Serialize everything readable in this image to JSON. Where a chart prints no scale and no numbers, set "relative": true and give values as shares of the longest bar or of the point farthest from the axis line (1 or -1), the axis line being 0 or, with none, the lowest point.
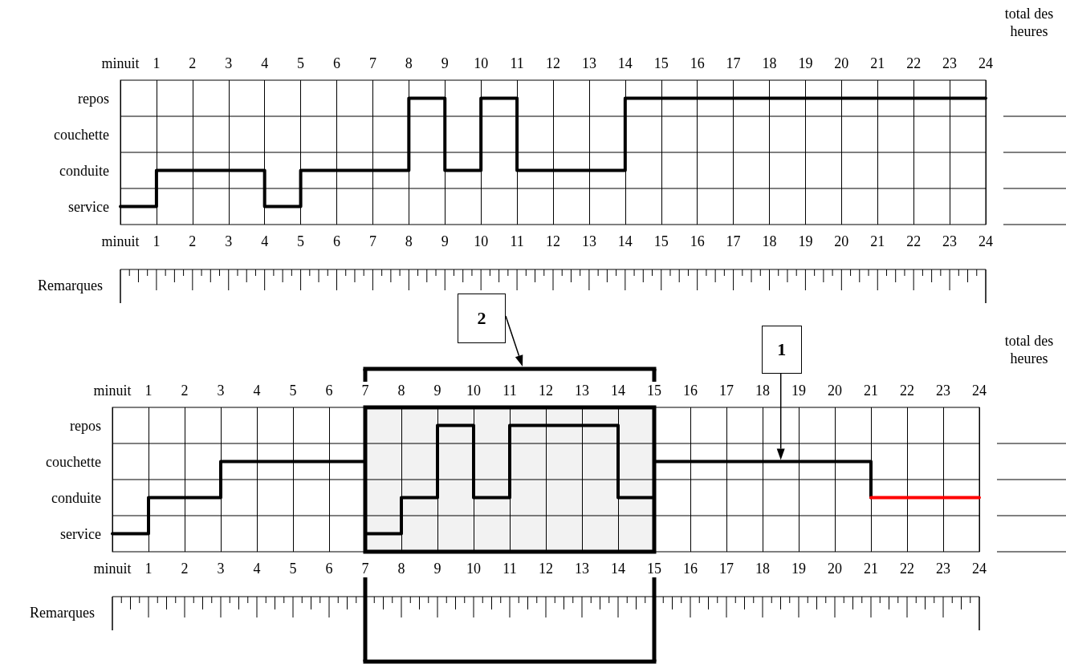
{
  "chart_data": [
    {
      "type": "step",
      "marker": "none",
      "grid": "x",
      "relative": true,
      "series": [
        {
          "color": "#000000",
          "x": [
            0,
            1,
            4,
            5,
            8,
            9,
            10,
            11,
            14,
            24
          ],
          "values": [
            0.143,
            0.429,
            0.143,
            0.429,
            1,
            0.429,
            1,
            0.429,
            1,
            1
          ]
        }
      ],
      "xlim": [
        0,
        24
      ],
      "xticks": [
        {
          "value": 0,
          "label": "minuit"
        },
        1,
        2,
        3,
        4,
        5,
        6,
        7,
        8,
        9,
        10,
        11,
        12,
        13,
        14,
        15,
        16,
        17,
        18,
        19,
        20,
        21,
        22,
        23,
        24
      ],
      "x2lim": [
        0,
        24
      ],
      "x2ticks": [
        {
          "value": 0,
          "label": "minuit"
        },
        1,
        2,
        3,
        4,
        5,
        6,
        7,
        8,
        9,
        10,
        11,
        12,
        13,
        14,
        15,
        16,
        17,
        18,
        19,
        20,
        21,
        22,
        23,
        24
      ],
      "annotations": [
        "total des heures",
        "Remarques",
        "repos",
        "couchette",
        "conduite",
        "service"
      ]
    },
    {
      "type": "step",
      "marker": "none",
      "grid": "x",
      "relative": true,
      "series": [
        {
          "color": "#000000",
          "x": [
            0,
            1,
            3,
            7,
            8,
            9,
            10,
            11,
            14,
            15,
            21
          ],
          "values": [
            0.143,
            0.429,
            0.714,
            0.143,
            0.429,
            1,
            0.429,
            1,
            0.429,
            0.714,
            0.429
          ]
        },
        {
          "color": "#ff0000",
          "x": [
            21,
            24
          ],
          "values": [
            0.429,
            0.429
          ]
        }
      ],
      "xlim": [
        0,
        24
      ],
      "xticks": [
        {
          "value": 0,
          "label": "minuit"
        },
        1,
        2,
        3,
        4,
        5,
        6,
        7,
        8,
        9,
        10,
        11,
        12,
        13,
        14,
        15,
        16,
        17,
        18,
        19,
        20,
        21,
        22,
        23,
        24
      ],
      "x2lim": [
        0,
        24
      ],
      "x2ticks": [
        {
          "value": 0,
          "label": "minuit"
        },
        1,
        2,
        3,
        4,
        5,
        6,
        7,
        8,
        9,
        10,
        11,
        12,
        13,
        14,
        15,
        16,
        17,
        18,
        19,
        20,
        21,
        22,
        23,
        24
      ],
      "bands": [
        {
          "axis": "x",
          "from": 7,
          "to": 15,
          "label": "2"
        }
      ],
      "annotations": [
        "total des heures",
        "Remarques",
        "repos",
        "couchette",
        "conduite",
        "service",
        {
          "text": "1"
        }
      ]
    }
  ]
}
